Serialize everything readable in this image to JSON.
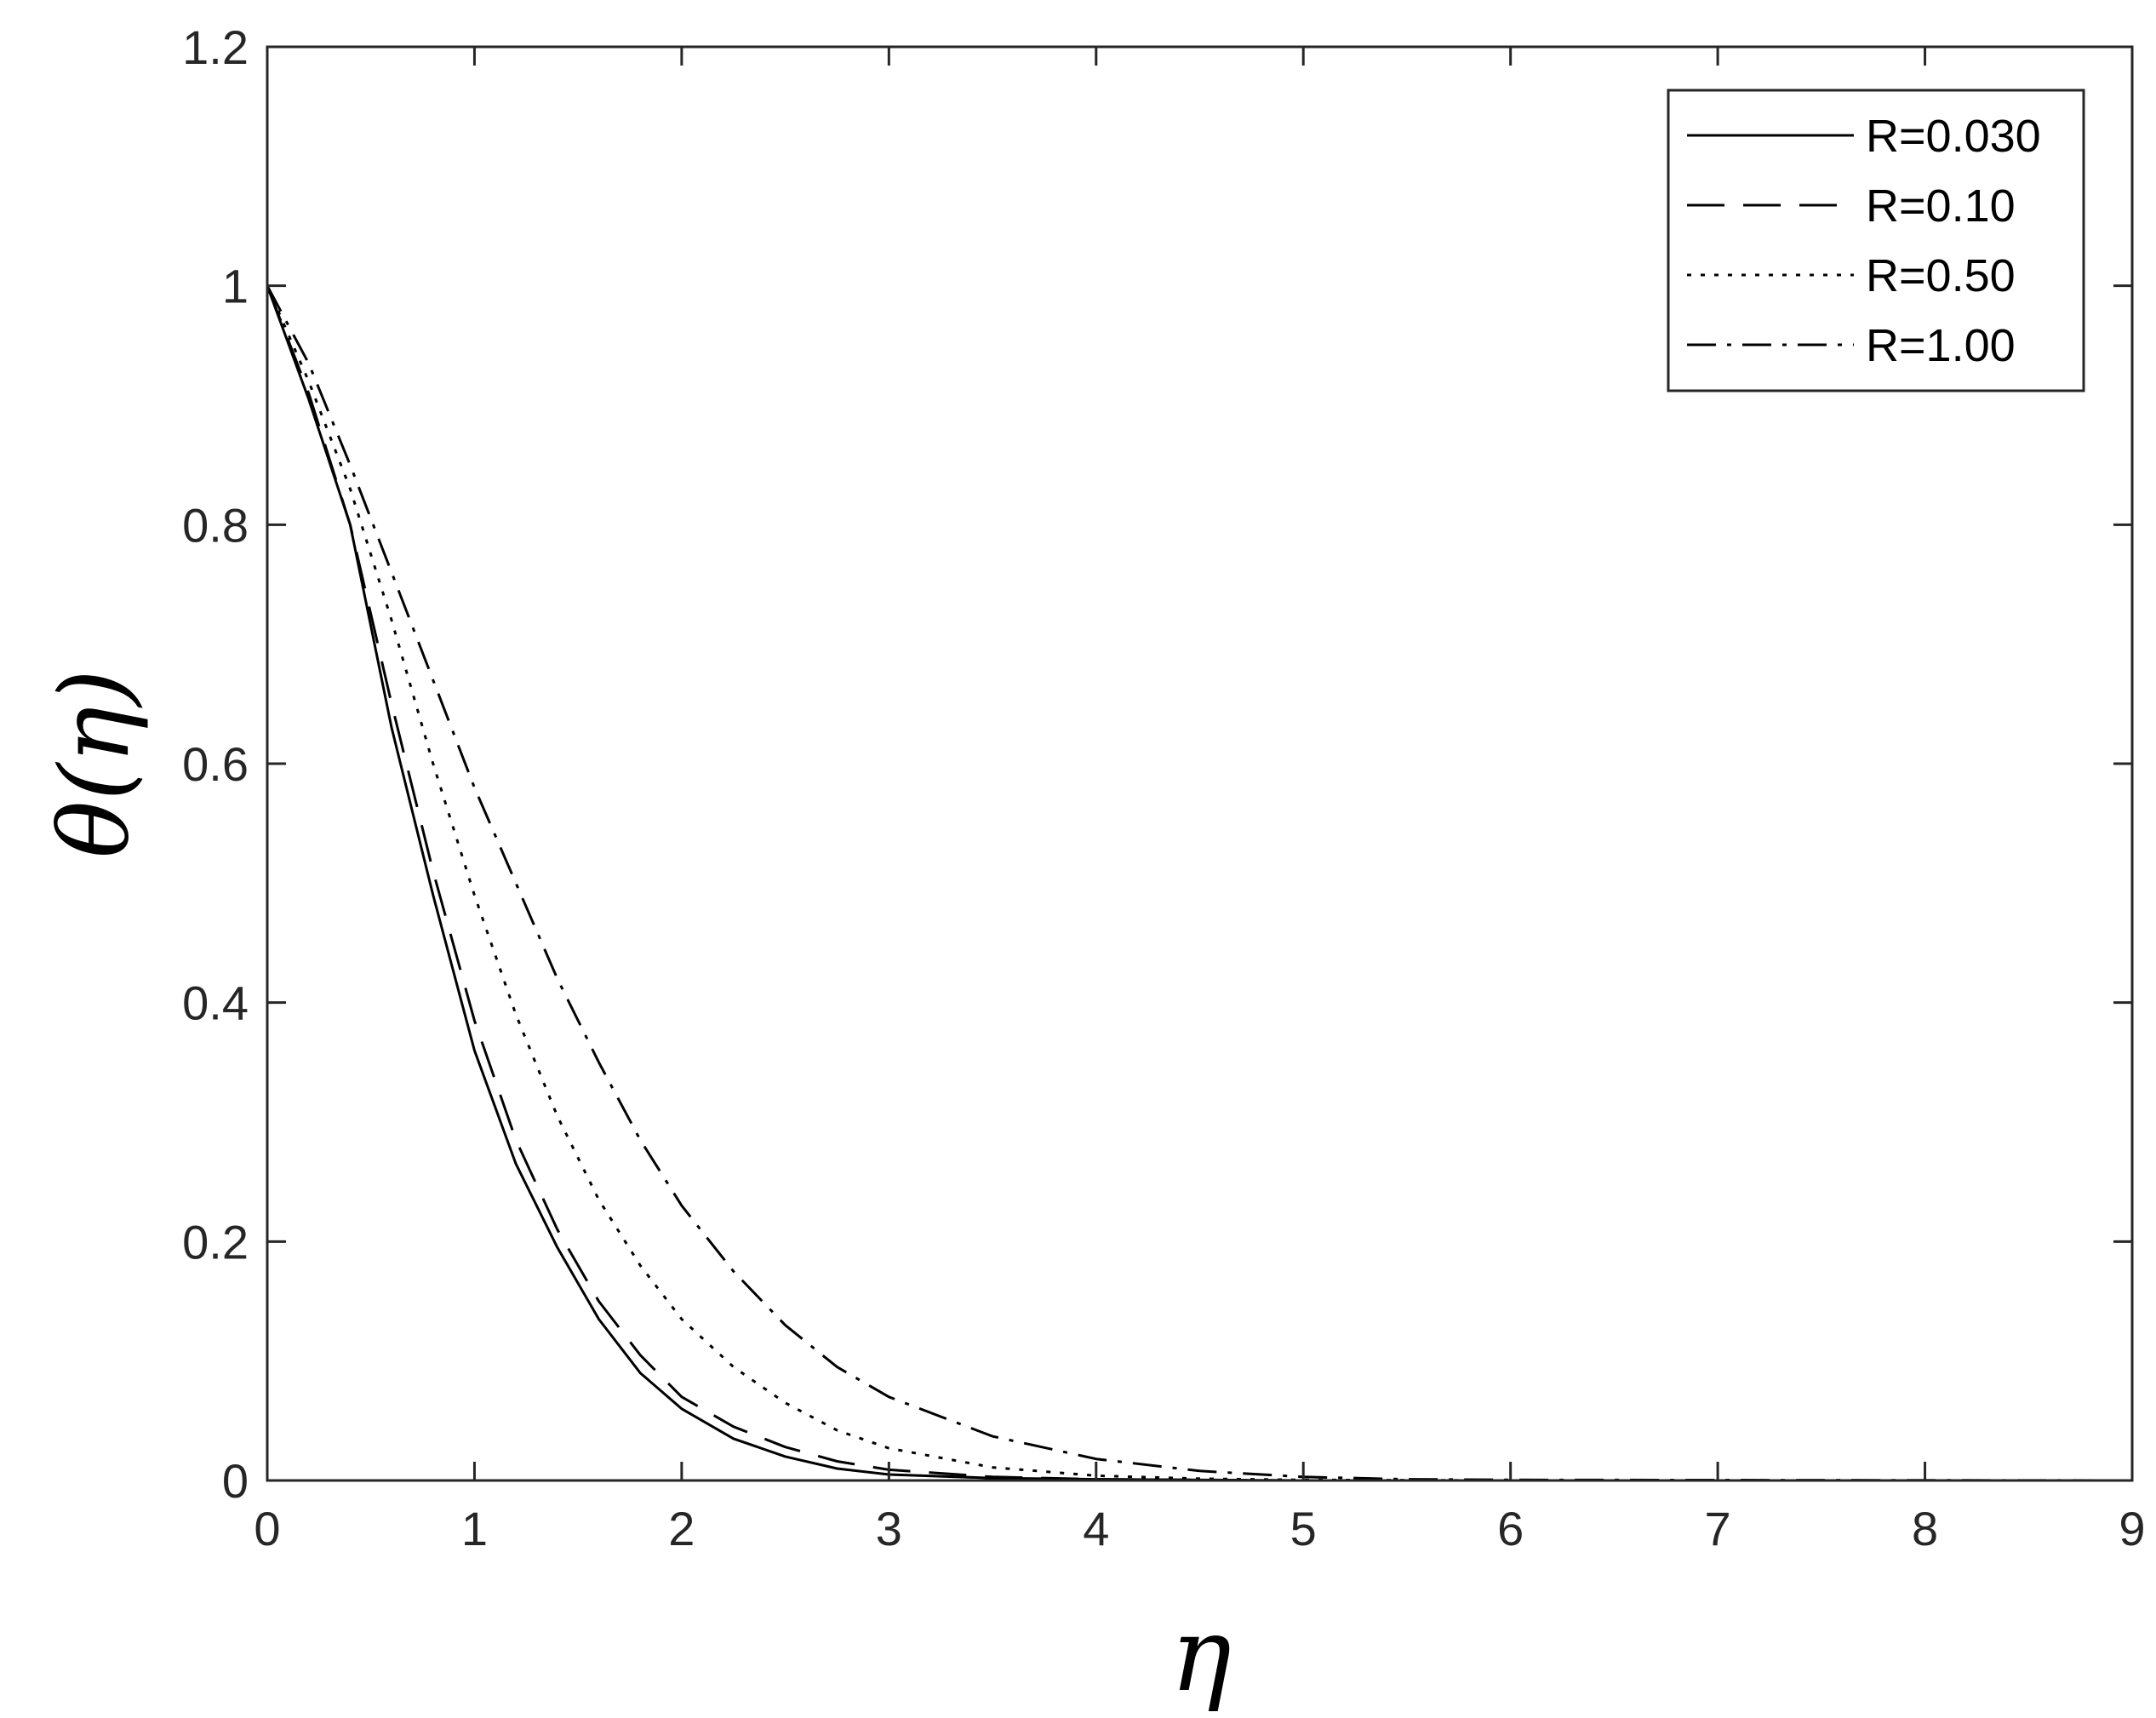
{
  "chart_data": {
    "type": "line",
    "title": "",
    "xlabel": "η",
    "ylabel": "θ(η)",
    "xlim": [
      0,
      9
    ],
    "ylim": [
      0,
      1.2
    ],
    "x_ticks": [
      "0",
      "1",
      "2",
      "3",
      "4",
      "5",
      "6",
      "7",
      "8",
      "9"
    ],
    "y_ticks": [
      "0",
      "0.2",
      "0.4",
      "0.6",
      "0.8",
      "1",
      "1.2"
    ],
    "grid": false,
    "legend_position": "top-right",
    "series": [
      {
        "name": "R=0.030",
        "dash": "solid",
        "points": [
          [
            0,
            1.0
          ],
          [
            0.2,
            0.905
          ],
          [
            0.4,
            0.8
          ],
          [
            0.6,
            0.63
          ],
          [
            0.8,
            0.49
          ],
          [
            1.0,
            0.36
          ],
          [
            1.2,
            0.265
          ],
          [
            1.4,
            0.195
          ],
          [
            1.6,
            0.135
          ],
          [
            1.8,
            0.09
          ],
          [
            2.0,
            0.06
          ],
          [
            2.25,
            0.035
          ],
          [
            2.5,
            0.02
          ],
          [
            2.75,
            0.01
          ],
          [
            3.0,
            0.005
          ],
          [
            3.5,
            0.002
          ],
          [
            4.0,
            0.001
          ],
          [
            5.0,
            0.0
          ],
          [
            6.0,
            0.0
          ],
          [
            9.0,
            0.0
          ]
        ]
      },
      {
        "name": "R=0.10",
        "dash": "dashed",
        "points": [
          [
            0,
            1.0
          ],
          [
            0.2,
            0.91
          ],
          [
            0.4,
            0.8
          ],
          [
            0.6,
            0.65
          ],
          [
            0.8,
            0.51
          ],
          [
            1.0,
            0.385
          ],
          [
            1.2,
            0.285
          ],
          [
            1.4,
            0.21
          ],
          [
            1.6,
            0.15
          ],
          [
            1.8,
            0.105
          ],
          [
            2.0,
            0.07
          ],
          [
            2.25,
            0.045
          ],
          [
            2.5,
            0.028
          ],
          [
            2.75,
            0.016
          ],
          [
            3.0,
            0.009
          ],
          [
            3.5,
            0.003
          ],
          [
            4.0,
            0.001
          ],
          [
            5.0,
            0.0
          ],
          [
            6.0,
            0.0
          ],
          [
            9.0,
            0.0
          ]
        ]
      },
      {
        "name": "R=0.50",
        "dash": "dotted",
        "points": [
          [
            0,
            1.0
          ],
          [
            0.2,
            0.92
          ],
          [
            0.4,
            0.83
          ],
          [
            0.6,
            0.72
          ],
          [
            0.8,
            0.6
          ],
          [
            1.0,
            0.49
          ],
          [
            1.2,
            0.39
          ],
          [
            1.4,
            0.305
          ],
          [
            1.6,
            0.235
          ],
          [
            1.8,
            0.18
          ],
          [
            2.0,
            0.135
          ],
          [
            2.25,
            0.095
          ],
          [
            2.5,
            0.065
          ],
          [
            2.75,
            0.042
          ],
          [
            3.0,
            0.027
          ],
          [
            3.5,
            0.011
          ],
          [
            4.0,
            0.004
          ],
          [
            4.5,
            0.0015
          ],
          [
            5.0,
            0.0005
          ],
          [
            6.0,
            0.0
          ],
          [
            9.0,
            0.0
          ]
        ]
      },
      {
        "name": "R=1.00",
        "dash": "dashdot",
        "points": [
          [
            0,
            1.0
          ],
          [
            0.2,
            0.935
          ],
          [
            0.4,
            0.85
          ],
          [
            0.6,
            0.76
          ],
          [
            0.8,
            0.67
          ],
          [
            1.0,
            0.58
          ],
          [
            1.2,
            0.5
          ],
          [
            1.4,
            0.42
          ],
          [
            1.6,
            0.35
          ],
          [
            1.8,
            0.285
          ],
          [
            2.0,
            0.23
          ],
          [
            2.25,
            0.175
          ],
          [
            2.5,
            0.13
          ],
          [
            2.75,
            0.095
          ],
          [
            3.0,
            0.07
          ],
          [
            3.5,
            0.037
          ],
          [
            4.0,
            0.018
          ],
          [
            4.5,
            0.008
          ],
          [
            5.0,
            0.003
          ],
          [
            5.5,
            0.001
          ],
          [
            6.0,
            0.0005
          ],
          [
            9.0,
            0.0
          ]
        ]
      }
    ]
  }
}
